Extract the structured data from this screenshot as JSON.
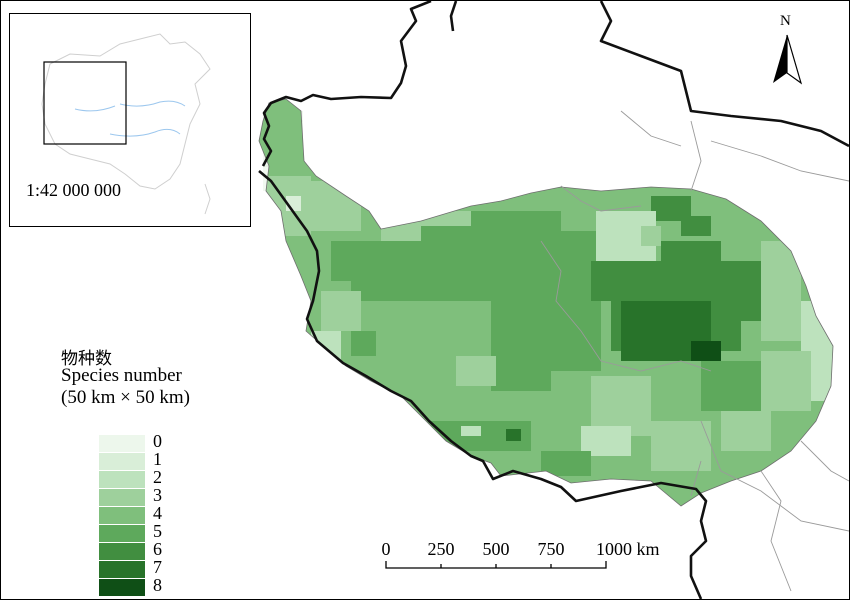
{
  "legend": {
    "title_cn": "物种数",
    "title_en": "Species number",
    "subtitle": "(50 km × 50 km)",
    "classes": [
      {
        "label": "0",
        "color": "#edf7ec"
      },
      {
        "label": "1",
        "color": "#d9eed8"
      },
      {
        "label": "2",
        "color": "#bde2bd"
      },
      {
        "label": "3",
        "color": "#9ed09c"
      },
      {
        "label": "4",
        "color": "#7fbf7c"
      },
      {
        "label": "5",
        "color": "#5ea95c"
      },
      {
        "label": "6",
        "color": "#418e40"
      },
      {
        "label": "7",
        "color": "#28732a"
      },
      {
        "label": "8",
        "color": "#0f4f16"
      }
    ]
  },
  "scale_bar": {
    "ticks": [
      "0",
      "250",
      "500",
      "750",
      "1000 km"
    ]
  },
  "inset": {
    "scale": "1:42 000 000"
  },
  "north_arrow": {
    "label": "N"
  },
  "colors": {
    "national_border": "#111111",
    "province_border": "#9a9a9a",
    "river": "#7fb3e6"
  }
}
